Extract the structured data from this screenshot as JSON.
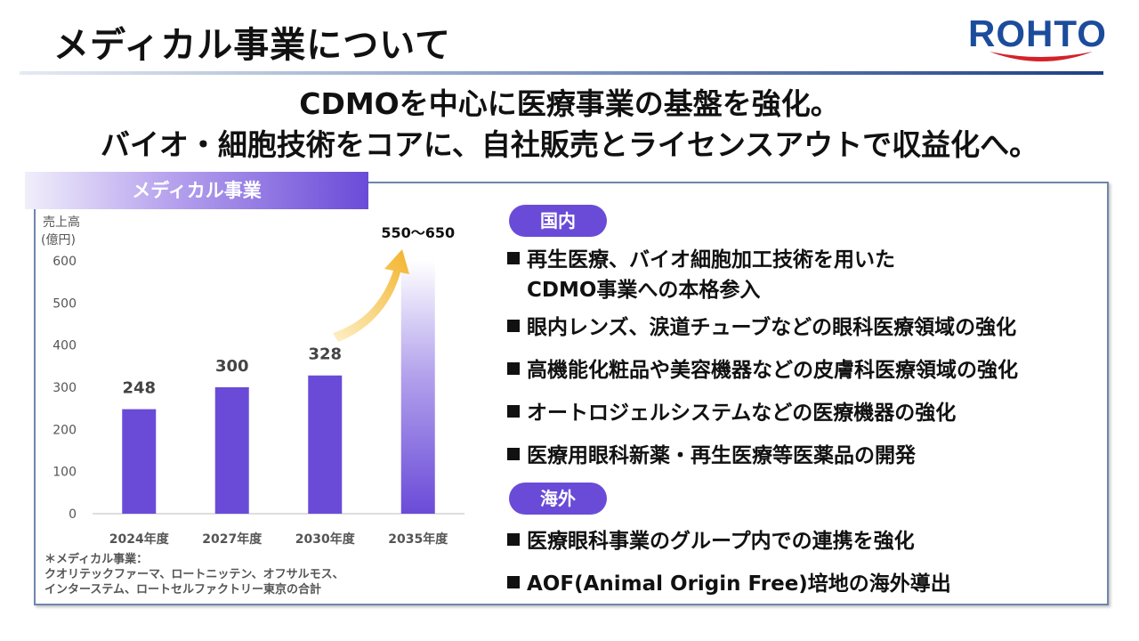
{
  "header": {
    "title": "メディカル事業について",
    "logo_text": "ROHTO",
    "headline_1": "CDMOを中心に医療事業の基盤を強化。",
    "headline_2": "バイオ・細胞技術をコアに、自社販売とライセンスアウトで収益化へ。"
  },
  "panel": {
    "tab_label": "メディカル事業",
    "footnote_lines": [
      "＊メディカル事業：",
      "クオリテックファーマ、ロートニッテン、オフサルモス、",
      "インターステム、ロートセルファクトリー東京の合計"
    ]
  },
  "chart_data": {
    "type": "bar",
    "ylabel": "売上高",
    "yunit": "(億円)",
    "categories": [
      "2024年度",
      "2027年度",
      "2030年度",
      "2035年度"
    ],
    "values": [
      248,
      300,
      328,
      600
    ],
    "data_labels": [
      "248",
      "300",
      "328",
      "550～650"
    ],
    "ylim": [
      0,
      600
    ],
    "yticks": [
      0,
      100,
      200,
      300,
      400,
      500,
      600
    ],
    "grid": false,
    "colors": {
      "bar": "#6a4bd8",
      "arrow": "#f2b32a"
    }
  },
  "domestic": {
    "tag": "国内",
    "items": [
      {
        "line1": "再生医療、バイオ細胞加工技術を用いた",
        "line2": "CDMO事業への本格参入"
      },
      {
        "line1": "眼内レンズ、涙道チューブなどの眼科医療領域の強化"
      },
      {
        "line1": "高機能化粧品や美容機器などの皮膚科医療領域の強化"
      },
      {
        "line1": "オートロジェルシステムなどの医療機器の強化"
      },
      {
        "line1": "医療用眼科新薬・再生医療等医薬品の開発"
      }
    ]
  },
  "overseas": {
    "tag": "海外",
    "items": [
      {
        "line1": "医療眼科事業のグループ内での連携を強化"
      },
      {
        "line1": "AOF(Animal Origin Free)培地の海外導出"
      }
    ]
  },
  "colors": {
    "accent": "#6a4bd8",
    "brand_blue": "#1c4c9c",
    "brand_red": "#d3222a"
  }
}
